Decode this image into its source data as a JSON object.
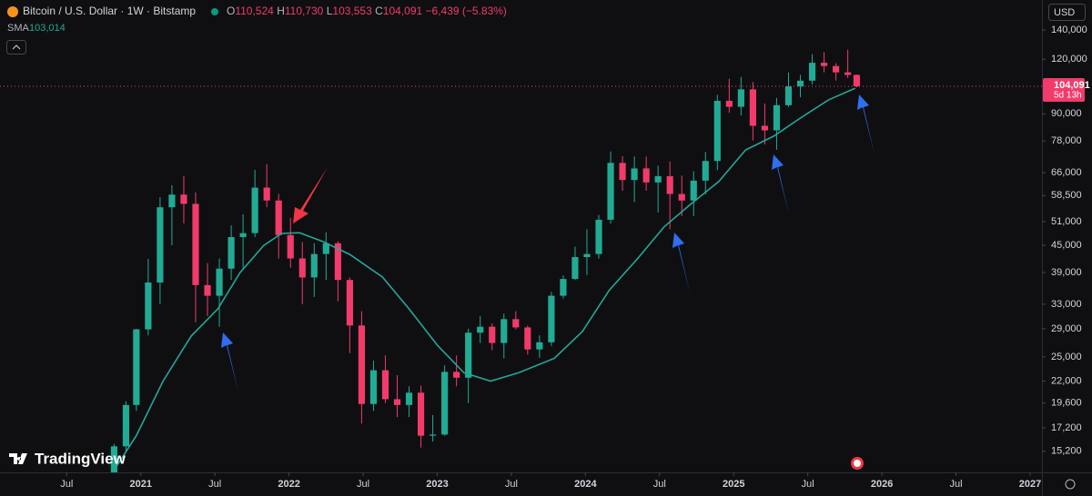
{
  "chart_data": {
    "type": "candlestick",
    "legend": {
      "symbol": "Bitcoin / U.S. Dollar · 1W · Bitstamp",
      "ohlc": [
        {
          "key": "O",
          "value": "110,524"
        },
        {
          "key": "H",
          "value": "110,730"
        },
        {
          "key": "L",
          "value": "103,553"
        },
        {
          "key": "C",
          "value": "104,091"
        }
      ],
      "change": "−6,439 (−5.83%)"
    },
    "indicator": {
      "name": "SMA",
      "value": "103,014"
    },
    "currency": "USD",
    "brand": "TradingView",
    "up_color": "#22ab94",
    "down_color": "#f23b6b",
    "log_scale": true,
    "x": [
      2020.82,
      2020.9,
      2020.97,
      2021.05,
      2021.13,
      2021.21,
      2021.29,
      2021.37,
      2021.45,
      2021.53,
      2021.61,
      2021.69,
      2021.77,
      2021.85,
      2021.93,
      2022.01,
      2022.09,
      2022.17,
      2022.25,
      2022.33,
      2022.41,
      2022.49,
      2022.57,
      2022.65,
      2022.73,
      2022.81,
      2022.89,
      2022.97,
      2023.05,
      2023.13,
      2023.21,
      2023.29,
      2023.37,
      2023.45,
      2023.53,
      2023.61,
      2023.69,
      2023.77,
      2023.85,
      2023.93,
      2024.01,
      2024.09,
      2024.17,
      2024.25,
      2024.33,
      2024.41,
      2024.49,
      2024.57,
      2024.65,
      2024.73,
      2024.81,
      2024.89,
      2024.97,
      2025.05,
      2025.13,
      2025.21,
      2025.29,
      2025.37,
      2025.45,
      2025.53,
      2025.61,
      2025.69,
      2025.77,
      2025.83
    ],
    "open": [
      13500,
      15600,
      19400,
      28900,
      37000,
      55000,
      58800,
      56000,
      36500,
      34500,
      39800,
      47000,
      48000,
      61000,
      57000,
      47500,
      42000,
      38000,
      43000,
      45500,
      37500,
      29500,
      19500,
      23300,
      20000,
      19400,
      20700,
      16500,
      16600,
      23100,
      22400,
      28400,
      29300,
      26900,
      30500,
      29200,
      26000,
      27000,
      34500,
      37700,
      42300,
      43000,
      51500,
      69500,
      63500,
      67500,
      62700,
      64800,
      59000,
      57000,
      63300,
      70200,
      96400,
      93400,
      102400,
      84500,
      82500,
      94200,
      104000,
      107200,
      117800,
      115800,
      112000,
      110524
    ],
    "high": [
      15800,
      19800,
      29000,
      41900,
      58000,
      61800,
      64800,
      59500,
      41000,
      42000,
      50000,
      53000,
      67000,
      69000,
      59000,
      52000,
      45800,
      45500,
      48200,
      46000,
      38000,
      31800,
      24500,
      25200,
      22700,
      21400,
      21500,
      18400,
      23900,
      25200,
      29000,
      31000,
      29800,
      31400,
      31800,
      29500,
      28000,
      35200,
      38400,
      44700,
      49000,
      52800,
      73800,
      72000,
      71900,
      71900,
      68500,
      70000,
      65000,
      66500,
      73600,
      99500,
      108300,
      109300,
      106400,
      95000,
      97900,
      111900,
      110500,
      123200,
      124500,
      117500,
      126200,
      110730
    ],
    "low": [
      13300,
      15200,
      18800,
      28000,
      33000,
      45000,
      50500,
      30000,
      31000,
      29300,
      37500,
      40000,
      47000,
      55000,
      42000,
      40000,
      33000,
      34300,
      37500,
      33500,
      25500,
      17600,
      18800,
      19600,
      18200,
      18200,
      15500,
      16000,
      16500,
      21400,
      19600,
      26900,
      25900,
      24800,
      28900,
      25300,
      24900,
      26500,
      34000,
      37500,
      38500,
      42000,
      50500,
      60000,
      56500,
      60000,
      53500,
      49000,
      52500,
      52500,
      58900,
      66900,
      90500,
      89200,
      78200,
      76600,
      74500,
      93400,
      98200,
      105100,
      112000,
      107300,
      108700,
      103553
    ],
    "close": [
      15600,
      19400,
      28900,
      37000,
      55000,
      58800,
      56000,
      36500,
      34500,
      39800,
      47000,
      48000,
      61000,
      57000,
      47500,
      42000,
      38000,
      43000,
      45500,
      37500,
      29500,
      19500,
      23300,
      20000,
      19400,
      20700,
      16500,
      16600,
      23100,
      22400,
      28400,
      29300,
      26900,
      30500,
      29200,
      26000,
      27000,
      34500,
      37700,
      42300,
      43000,
      51500,
      69500,
      63500,
      67500,
      62700,
      64800,
      59000,
      57000,
      63300,
      70200,
      96400,
      93400,
      102400,
      84500,
      82500,
      94200,
      104000,
      107200,
      117800,
      115800,
      112000,
      110500,
      104091
    ],
    "sma": {
      "color": "#26a69a",
      "x": [
        2020.81,
        2020.97,
        2021.15,
        2021.34,
        2021.52,
        2021.67,
        2021.83,
        2021.95,
        2022.07,
        2022.23,
        2022.41,
        2022.63,
        2022.81,
        2023.0,
        2023.18,
        2023.36,
        2023.55,
        2023.79,
        2023.98,
        2024.16,
        2024.35,
        2024.53,
        2024.71,
        2024.9,
        2025.08,
        2025.27,
        2025.45,
        2025.64,
        2025.82
      ],
      "values": [
        13600,
        16500,
        22000,
        27900,
        32200,
        39000,
        45000,
        47900,
        48100,
        45900,
        42900,
        38100,
        32200,
        26600,
        23000,
        22000,
        23000,
        24800,
        28600,
        35500,
        41900,
        49600,
        55900,
        63000,
        74400,
        80000,
        88000,
        96900,
        103014
      ]
    },
    "last_price": {
      "value": 104091,
      "label": "104,091",
      "countdown": "5d 13h"
    },
    "xlim": [
      2020.05,
      2027.08
    ],
    "xticks": [
      {
        "value": 2020.5,
        "label": "Jul"
      },
      2021,
      {
        "value": 2021.5,
        "label": "Jul"
      },
      2022,
      {
        "value": 2022.5,
        "label": "Jul"
      },
      2023,
      {
        "value": 2023.5,
        "label": "Jul"
      },
      2024,
      {
        "value": 2024.5,
        "label": "Jul"
      },
      2025,
      {
        "value": 2025.5,
        "label": "Jul"
      },
      2026,
      {
        "value": 2026.5,
        "label": "Jul"
      },
      2027
    ],
    "ylim": [
      13600,
      164000
    ],
    "yticks": [
      {
        "value": 15200,
        "label": "15,200"
      },
      {
        "value": 17200,
        "label": "17,200"
      },
      {
        "value": 19600,
        "label": "19,600"
      },
      {
        "value": 22000,
        "label": "22,000"
      },
      {
        "value": 25000,
        "label": "25,000"
      },
      {
        "value": 29000,
        "label": "29,000"
      },
      {
        "value": 33000,
        "label": "33,000"
      },
      {
        "value": 39000,
        "label": "39,000"
      },
      {
        "value": 45000,
        "label": "45,000"
      },
      {
        "value": 51000,
        "label": "51,000"
      },
      {
        "value": 58500,
        "label": "58,500"
      },
      {
        "value": 66000,
        "label": "66,000"
      },
      {
        "value": 78000,
        "label": "78,000"
      },
      {
        "value": 90000,
        "label": "90,000"
      },
      {
        "value": 120000,
        "label": "120,000"
      },
      {
        "value": 140000,
        "label": "140,000"
      }
    ]
  }
}
